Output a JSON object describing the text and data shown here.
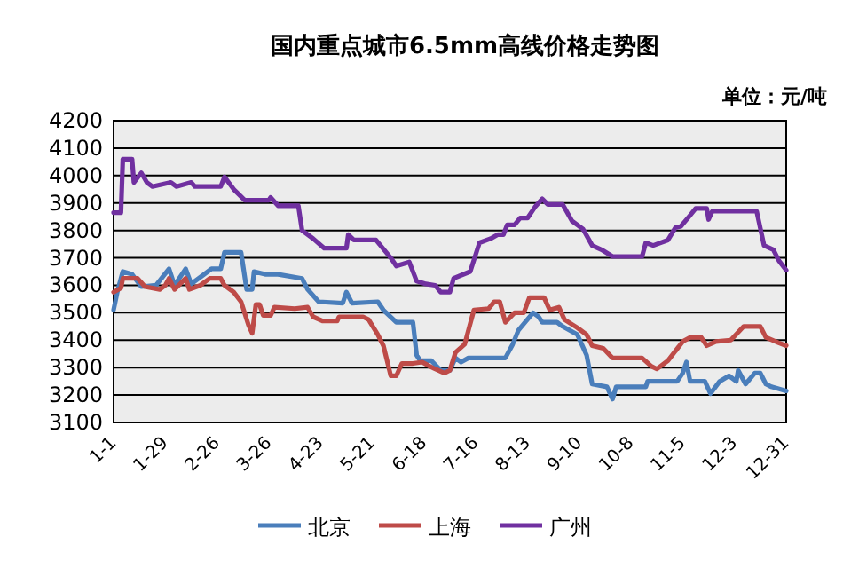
{
  "chart_data": {
    "type": "line",
    "title": "国内重点城市6.5mm高线价格走势图",
    "annotations": [
      "单位：元/吨"
    ],
    "ylim": [
      3100,
      4200
    ],
    "yticks": [
      3100,
      3200,
      3300,
      3400,
      3500,
      3600,
      3700,
      3800,
      3900,
      4000,
      4100,
      4200
    ],
    "xlim": [
      "--01-01",
      "--12-31"
    ],
    "xticks": [
      {
        "value": "--01-01",
        "label": "1-1"
      },
      {
        "value": "--01-29",
        "label": "1-29"
      },
      {
        "value": "--02-26",
        "label": "2-26"
      },
      {
        "value": "--03-26",
        "label": "3-26"
      },
      {
        "value": "--04-23",
        "label": "4-23"
      },
      {
        "value": "--05-21",
        "label": "5-21"
      },
      {
        "value": "--06-18",
        "label": "6-18"
      },
      {
        "value": "--07-16",
        "label": "7-16"
      },
      {
        "value": "--08-13",
        "label": "8-13"
      },
      {
        "value": "--09-10",
        "label": "9-10"
      },
      {
        "value": "--10-08",
        "label": "10-8"
      },
      {
        "value": "--11-05",
        "label": "11-5"
      },
      {
        "value": "--12-03",
        "label": "12-3"
      },
      {
        "value": "--12-31",
        "label": "12-31"
      }
    ],
    "grid": "y",
    "legend": "bottom",
    "series": [
      {
        "name": "北京",
        "color": "#4a7ebb",
        "x": [
          "--01-01",
          "--01-03",
          "--01-06",
          "--01-11",
          "--01-16",
          "--01-24",
          "--01-31",
          "--02-03",
          "--02-09",
          "--02-12",
          "--02-19",
          "--02-23",
          "--02-28",
          "--03-02",
          "--03-11",
          "--03-14",
          "--03-17",
          "--03-18",
          "--03-24",
          "--03-31",
          "--04-13",
          "--04-16",
          "--04-22",
          "--05-05",
          "--05-07",
          "--05-10",
          "--05-24",
          "--05-27",
          "--06-03",
          "--06-12",
          "--06-14",
          "--06-16",
          "--06-22",
          "--06-27",
          "--07-02",
          "--07-05",
          "--07-08",
          "--07-12",
          "--08-01",
          "--08-05",
          "--08-08",
          "--08-16",
          "--08-19",
          "--08-21",
          "--08-29",
          "--09-01",
          "--09-09",
          "--09-14",
          "--09-17",
          "--09-25",
          "--09-28",
          "--09-30",
          "--10-16",
          "--10-17",
          "--11-02",
          "--11-05",
          "--11-07",
          "--11-09",
          "--11-17",
          "--11-20",
          "--11-25",
          "--11-30",
          "--12-04",
          "--12-05",
          "--12-09",
          "--12-14",
          "--12-17",
          "--12-20",
          "--12-23",
          "--12-31"
        ],
        "values": [
          3510,
          3575,
          3650,
          3640,
          3595,
          3600,
          3660,
          3600,
          3660,
          3605,
          3640,
          3660,
          3660,
          3720,
          3720,
          3585,
          3585,
          3650,
          3640,
          3640,
          3625,
          3585,
          3540,
          3535,
          3575,
          3535,
          3540,
          3510,
          3465,
          3465,
          3345,
          3325,
          3325,
          3290,
          3290,
          3335,
          3320,
          3335,
          3335,
          3385,
          3435,
          3500,
          3485,
          3465,
          3465,
          3450,
          3420,
          3345,
          3240,
          3230,
          3185,
          3230,
          3230,
          3250,
          3250,
          3280,
          3320,
          3250,
          3250,
          3205,
          3250,
          3270,
          3250,
          3290,
          3240,
          3280,
          3280,
          3240,
          3230,
          3215
        ]
      },
      {
        "name": "上海",
        "color": "#be4b48",
        "x": [
          "--01-01",
          "--01-05",
          "--01-06",
          "--01-14",
          "--01-18",
          "--01-26",
          "--01-29",
          "--01-31",
          "--02-03",
          "--02-09",
          "--02-11",
          "--02-17",
          "--02-22",
          "--02-28",
          "--03-02",
          "--03-07",
          "--03-11",
          "--03-15",
          "--03-17",
          "--03-19",
          "--03-21",
          "--03-23",
          "--03-27",
          "--03-29",
          "--04-09",
          "--04-16",
          "--04-19",
          "--04-24",
          "--05-02",
          "--05-03",
          "--05-16",
          "--05-19",
          "--05-24",
          "--05-27",
          "--05-31",
          "--06-03",
          "--06-06",
          "--06-12",
          "--06-17",
          "--06-21",
          "--06-24",
          "--06-29",
          "--07-02",
          "--07-05",
          "--07-10",
          "--07-15",
          "--07-23",
          "--07-26",
          "--07-29",
          "--08-01",
          "--08-06",
          "--08-11",
          "--08-14",
          "--08-22",
          "--08-25",
          "--08-30",
          "--09-02",
          "--09-09",
          "--09-14",
          "--09-17",
          "--09-23",
          "--09-28",
          "--10-14",
          "--10-19",
          "--10-22",
          "--10-28",
          "--11-05",
          "--11-09",
          "--11-15",
          "--11-18",
          "--11-23",
          "--12-01",
          "--12-08",
          "--12-17",
          "--12-20",
          "--12-27",
          "--12-31"
        ],
        "values": [
          3575,
          3590,
          3625,
          3625,
          3595,
          3585,
          3600,
          3625,
          3585,
          3625,
          3585,
          3600,
          3625,
          3625,
          3600,
          3575,
          3540,
          3455,
          3425,
          3530,
          3530,
          3490,
          3490,
          3520,
          3515,
          3520,
          3485,
          3470,
          3470,
          3485,
          3485,
          3475,
          3420,
          3380,
          3270,
          3270,
          3315,
          3315,
          3320,
          3305,
          3295,
          3280,
          3290,
          3355,
          3385,
          3510,
          3515,
          3540,
          3540,
          3465,
          3500,
          3500,
          3555,
          3555,
          3510,
          3520,
          3475,
          3445,
          3420,
          3380,
          3370,
          3335,
          3335,
          3305,
          3295,
          3325,
          3395,
          3410,
          3410,
          3380,
          3395,
          3400,
          3450,
          3450,
          3410,
          3390,
          3380
        ]
      },
      {
        "name": "广州",
        "color": "#7030a0",
        "x": [
          "--01-01",
          "--01-05",
          "--01-06",
          "--01-11",
          "--01-12",
          "--01-16",
          "--01-19",
          "--01-22",
          "--02-01",
          "--02-04",
          "--02-12",
          "--02-14",
          "--02-28",
          "--03-02",
          "--03-07",
          "--03-13",
          "--03-26",
          "--03-27",
          "--03-31",
          "--04-11",
          "--04-13",
          "--04-19",
          "--04-25",
          "--05-07",
          "--05-08",
          "--05-11",
          "--05-23",
          "--05-31",
          "--06-03",
          "--06-10",
          "--06-14",
          "--06-19",
          "--06-24",
          "--06-27",
          "--07-02",
          "--07-04",
          "--07-13",
          "--07-18",
          "--07-24",
          "--07-28",
          "--07-31",
          "--08-02",
          "--08-06",
          "--08-09",
          "--08-13",
          "--08-17",
          "--08-21",
          "--08-24",
          "--09-01",
          "--09-06",
          "--09-12",
          "--09-17",
          "--09-22",
          "--09-28",
          "--10-14",
          "--10-16",
          "--10-20",
          "--10-28",
          "--11-01",
          "--11-04",
          "--11-09",
          "--11-12",
          "--11-18",
          "--11-19",
          "--11-21",
          "--12-15",
          "--12-19",
          "--12-24",
          "--12-27",
          "--12-31"
        ],
        "values": [
          3865,
          3865,
          4060,
          4060,
          3975,
          4010,
          3975,
          3960,
          3975,
          3960,
          3975,
          3960,
          3960,
          3995,
          3950,
          3910,
          3910,
          3920,
          3890,
          3890,
          3800,
          3770,
          3735,
          3735,
          3785,
          3765,
          3765,
          3700,
          3670,
          3685,
          3615,
          3605,
          3600,
          3575,
          3575,
          3625,
          3650,
          3755,
          3770,
          3785,
          3785,
          3820,
          3820,
          3845,
          3845,
          3885,
          3915,
          3895,
          3895,
          3835,
          3805,
          3745,
          3730,
          3705,
          3705,
          3755,
          3745,
          3765,
          3810,
          3815,
          3855,
          3880,
          3880,
          3840,
          3870,
          3870,
          3745,
          3730,
          3690,
          3655
        ]
      }
    ]
  }
}
